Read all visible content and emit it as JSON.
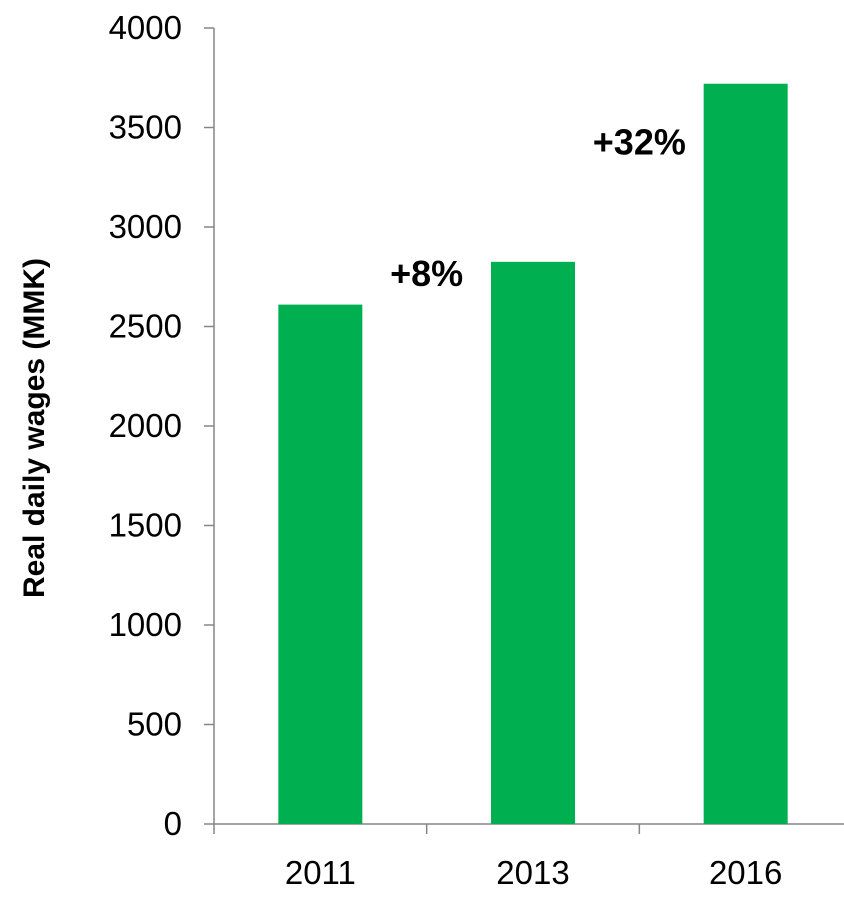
{
  "chart_data": {
    "type": "bar",
    "title": "",
    "xlabel": "",
    "ylabel": "Real daily wages (MMK)",
    "categories": [
      "2011",
      "2013",
      "2016"
    ],
    "values": [
      2610,
      2825,
      3720
    ],
    "ylim": [
      0,
      4000
    ],
    "yticks": [
      0,
      500,
      1000,
      1500,
      2000,
      2500,
      3000,
      3500,
      4000
    ],
    "grid": false,
    "legend": "none",
    "bar_color": "#00B050",
    "annotations": [
      {
        "text": "+8%",
        "between": [
          "2011",
          "2013"
        ],
        "y": 2770
      },
      {
        "text": "+32%",
        "between": [
          "2013",
          "2016"
        ],
        "y": 3430
      }
    ]
  }
}
